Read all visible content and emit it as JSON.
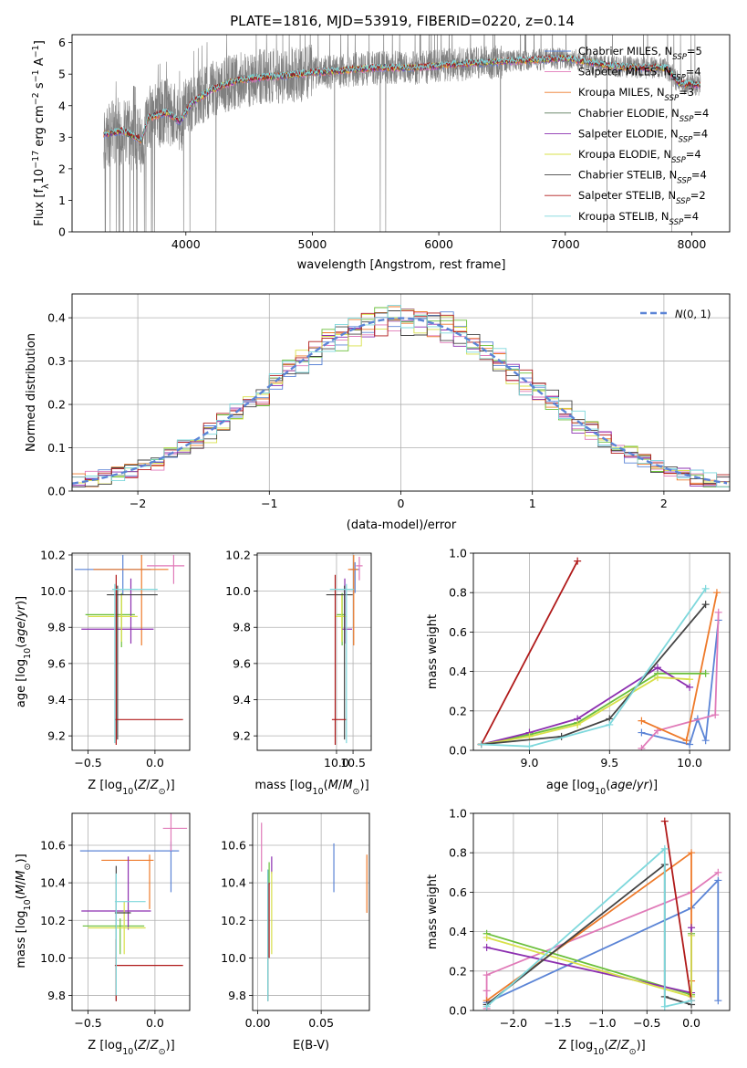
{
  "figure": {
    "title": "PLATE=1816, MJD=53919, FIBERID=0220, z=0.14"
  },
  "chart_data": [
    {
      "id": "spectrum",
      "type": "line",
      "xlabel": "wavelength [Angstrom, rest frame]",
      "ylabel": "Flux [f_λ 10^-17 erg cm^-2 s^-1 A^-1]",
      "xlim": [
        3100,
        8300
      ],
      "ylim": [
        0,
        6.25
      ],
      "xticks": [
        4000,
        5000,
        6000,
        7000,
        8000
      ],
      "yticks": [
        0,
        1,
        2,
        3,
        4,
        5,
        6
      ],
      "grid": false,
      "legend_position": "top-right",
      "data_range_x": [
        3350,
        8070
      ],
      "model_shape": {
        "x": [
          3350,
          3500,
          3650,
          3700,
          3850,
          3950,
          4050,
          4200,
          4400,
          4600,
          4800,
          5000,
          5200,
          5500,
          5800,
          6100,
          6500,
          7000,
          7300,
          7400,
          7600,
          7800,
          7900,
          8070
        ],
        "y": [
          3.1,
          3.2,
          2.9,
          3.6,
          3.8,
          3.5,
          4.1,
          4.5,
          4.8,
          4.9,
          4.95,
          5.05,
          5.1,
          5.2,
          5.2,
          5.3,
          5.4,
          5.5,
          5.3,
          5.25,
          5.2,
          5.2,
          4.7,
          4.65
        ]
      },
      "series": [
        {
          "name": "Chabrier MILES, N_SSP=5",
          "color": "#5b84d6"
        },
        {
          "name": "Salpeter MILES, N_SSP=4",
          "color": "#e07ab8"
        },
        {
          "name": "Kroupa MILES, N_SSP=3",
          "color": "#ee7a2a"
        },
        {
          "name": "Chabrier ELODIE, N_SSP=4",
          "color": "#5a7a5a"
        },
        {
          "name": "Salpeter ELODIE, N_SSP=4",
          "color": "#8c2fb0"
        },
        {
          "name": "Kroupa ELODIE, N_SSP=4",
          "color": "#d8e04a"
        },
        {
          "name": "Chabrier STELIB, N_SSP=4",
          "color": "#444444"
        },
        {
          "name": "Salpeter STELIB, N_SSP=2",
          "color": "#b01a1a"
        },
        {
          "name": "Kroupa STELIB, N_SSP=4",
          "color": "#7ed8dc"
        }
      ],
      "data_series_color": "#808080"
    },
    {
      "id": "residuals",
      "type": "histogram",
      "xlabel": "(data-model)/error",
      "ylabel": "Normed distribution",
      "xlim": [
        -2.5,
        2.5
      ],
      "ylim": [
        0,
        0.455
      ],
      "xticks": [
        -2,
        -1,
        0,
        1,
        2
      ],
      "yticks": [
        0.0,
        0.1,
        0.2,
        0.3,
        0.4
      ],
      "grid": true,
      "legend_position": "top-right",
      "legend": [
        {
          "label": "N(0,1)",
          "style": "dashed",
          "color": "#5b84d6"
        }
      ],
      "bin_width": 0.1
    },
    {
      "id": "age-vs-Z",
      "type": "errorbar",
      "xlabel": "Z [log10(Z/Z⊙)]",
      "ylabel": "age [log10(age/yr)]",
      "xlim": [
        -0.62,
        0.26
      ],
      "ylim": [
        9.12,
        10.21
      ],
      "xticks": [
        -0.5,
        0.0
      ],
      "yticks": [
        9.2,
        9.4,
        9.6,
        9.8,
        10.0,
        10.2
      ],
      "grid": true,
      "points": [
        {
          "x": -0.24,
          "y": 10.12,
          "xerr": [
            0.36,
            0.21
          ],
          "yerr": [
            0.14,
            0.08
          ],
          "color": "#5b84d6"
        },
        {
          "x": 0.14,
          "y": 10.14,
          "xerr": [
            0.2,
            0.08
          ],
          "yerr": [
            0.1,
            0.06
          ],
          "color": "#e07ab8"
        },
        {
          "x": -0.1,
          "y": 10.12,
          "xerr": [
            0.36,
            0.2
          ],
          "yerr": [
            0.42,
            0.08
          ],
          "color": "#ee7a2a"
        },
        {
          "x": -0.25,
          "y": 9.87,
          "xerr": [
            0.27,
            0.1
          ],
          "yerr": [
            0.18,
            0.12
          ],
          "color": "#6abf3a"
        },
        {
          "x": -0.18,
          "y": 9.79,
          "xerr": [
            0.37,
            0.17
          ],
          "yerr": [
            0.08,
            0.28
          ],
          "color": "#8c2fb0"
        },
        {
          "x": -0.25,
          "y": 9.86,
          "xerr": [
            0.25,
            0.12
          ],
          "yerr": [
            0.14,
            0.12
          ],
          "color": "#d8e04a"
        },
        {
          "x": -0.28,
          "y": 9.98,
          "xerr": [
            0.08,
            0.3
          ],
          "yerr": [
            0.8,
            0.05
          ],
          "color": "#444444"
        },
        {
          "x": -0.29,
          "y": 9.29,
          "xerr": [
            0.01,
            0.5
          ],
          "yerr": [
            0.14,
            0.8
          ],
          "color": "#b01a1a"
        },
        {
          "x": -0.3,
          "y": 10.01,
          "xerr": [
            0.02,
            0.32
          ],
          "yerr": [
            0.85,
            0.03
          ],
          "color": "#7ed8dc"
        }
      ]
    },
    {
      "id": "age-vs-mass",
      "type": "errorbar",
      "xlabel": "mass [log10(M/M⊙)]",
      "ylabel": "",
      "xlim": [
        7.6,
        11.05
      ],
      "ylim": [
        9.12,
        10.21
      ],
      "xticks": [
        10.0,
        10.5
      ],
      "yticks": [
        9.2,
        9.4,
        9.6,
        9.8,
        10.0,
        10.2
      ],
      "grid": true,
      "points": [
        {
          "x": 10.56,
          "y": 10.12,
          "xerr": [
            0.14,
            0.12
          ],
          "yerr": [
            0.13,
            0.04
          ],
          "color": "#5b84d6"
        },
        {
          "x": 10.69,
          "y": 10.14,
          "xerr": [
            0.1,
            0.1
          ],
          "yerr": [
            0.08,
            0.05
          ],
          "color": "#e07ab8"
        },
        {
          "x": 10.52,
          "y": 10.12,
          "xerr": [
            0.17,
            0.12
          ],
          "yerr": [
            0.42,
            0.08
          ],
          "color": "#ee7a2a"
        },
        {
          "x": 10.17,
          "y": 9.87,
          "xerr": [
            0.16,
            0.1
          ],
          "yerr": [
            0.17,
            0.12
          ],
          "color": "#6abf3a"
        },
        {
          "x": 10.25,
          "y": 9.79,
          "xerr": [
            0.09,
            0.22
          ],
          "yerr": [
            0.08,
            0.28
          ],
          "color": "#8c2fb0"
        },
        {
          "x": 10.16,
          "y": 9.86,
          "xerr": [
            0.2,
            0.15
          ],
          "yerr": [
            0.14,
            0.12
          ],
          "color": "#d8e04a"
        },
        {
          "x": 10.24,
          "y": 9.98,
          "xerr": [
            0.55,
            0.25
          ],
          "yerr": [
            0.8,
            0.05
          ],
          "color": "#444444"
        },
        {
          "x": 9.96,
          "y": 9.29,
          "xerr": [
            0.1,
            0.36
          ],
          "yerr": [
            0.14,
            0.8
          ],
          "color": "#b01a1a"
        },
        {
          "x": 10.3,
          "y": 10.01,
          "xerr": [
            0.5,
            0.22
          ],
          "yerr": [
            0.85,
            0.03
          ],
          "color": "#7ed8dc"
        }
      ]
    },
    {
      "id": "weight-vs-age",
      "type": "line",
      "xlabel": "age [log10(age/yr)]",
      "ylabel": "mass weight",
      "xlim": [
        8.65,
        10.25
      ],
      "ylim": [
        0,
        1.0
      ],
      "xticks": [
        9.0,
        9.5,
        10.0
      ],
      "yticks": [
        0.0,
        0.2,
        0.4,
        0.6,
        0.8,
        1.0
      ],
      "grid": true,
      "series": [
        {
          "color": "#5b84d6",
          "x": [
            9.7,
            10.0,
            10.05,
            10.1,
            10.18
          ],
          "y": [
            0.09,
            0.03,
            0.16,
            0.05,
            0.66
          ]
        },
        {
          "color": "#e07ab8",
          "x": [
            9.7,
            9.8,
            10.16,
            10.18
          ],
          "y": [
            0.01,
            0.1,
            0.18,
            0.7
          ]
        },
        {
          "color": "#ee7a2a",
          "x": [
            9.7,
            9.98,
            10.17
          ],
          "y": [
            0.15,
            0.05,
            0.8
          ]
        },
        {
          "color": "#6abf3a",
          "x": [
            8.7,
            9.0,
            9.3,
            9.8,
            10.1
          ],
          "y": [
            0.03,
            0.08,
            0.14,
            0.39,
            0.39
          ]
        },
        {
          "color": "#8c2fb0",
          "x": [
            8.7,
            9.0,
            9.3,
            9.8,
            10.0
          ],
          "y": [
            0.03,
            0.09,
            0.16,
            0.42,
            0.32
          ]
        },
        {
          "color": "#d8e04a",
          "x": [
            8.7,
            9.0,
            9.3,
            9.8,
            10.0
          ],
          "y": [
            0.03,
            0.07,
            0.13,
            0.37,
            0.36
          ]
        },
        {
          "color": "#444444",
          "x": [
            8.7,
            9.2,
            9.5,
            10.1
          ],
          "y": [
            0.03,
            0.07,
            0.16,
            0.74
          ]
        },
        {
          "color": "#b01a1a",
          "x": [
            8.7,
            9.3
          ],
          "y": [
            0.03,
            0.96
          ]
        },
        {
          "color": "#7ed8dc",
          "x": [
            8.7,
            9.0,
            9.5,
            10.1
          ],
          "y": [
            0.03,
            0.02,
            0.13,
            0.82
          ]
        }
      ]
    },
    {
      "id": "mass-vs-Z",
      "type": "errorbar",
      "xlabel": "Z [log10(Z/Z⊙)]",
      "ylabel": "mass [log10(M/M⊙)]",
      "xlim": [
        -0.62,
        0.26
      ],
      "ylim": [
        9.72,
        10.77
      ],
      "xticks": [
        -0.5,
        0.0
      ],
      "yticks": [
        9.8,
        10.0,
        10.2,
        10.4,
        10.6
      ],
      "grid": true,
      "points": [
        {
          "x": 0.12,
          "y": 10.57,
          "xerr": [
            0.68,
            0.06
          ],
          "yerr": [
            0.22,
            0.05
          ],
          "color": "#5b84d6"
        },
        {
          "x": 0.12,
          "y": 10.69,
          "xerr": [
            0.06,
            0.12
          ],
          "yerr": [
            0.12,
            0.08
          ],
          "color": "#e07ab8"
        },
        {
          "x": -0.04,
          "y": 10.52,
          "xerr": [
            0.36,
            0.03
          ],
          "yerr": [
            0.26,
            0.03
          ],
          "color": "#ee7a2a"
        },
        {
          "x": -0.26,
          "y": 10.17,
          "xerr": [
            0.28,
            0.18
          ],
          "yerr": [
            0.15,
            0.04
          ],
          "color": "#6abf3a"
        },
        {
          "x": -0.2,
          "y": 10.25,
          "xerr": [
            0.35,
            0.17
          ],
          "yerr": [
            0.1,
            0.29
          ],
          "color": "#8c2fb0"
        },
        {
          "x": -0.23,
          "y": 10.16,
          "xerr": [
            0.27,
            0.16
          ],
          "yerr": [
            0.14,
            0.14
          ],
          "color": "#d8e04a"
        },
        {
          "x": -0.29,
          "y": 10.24,
          "xerr": [
            0.01,
            0.11
          ],
          "yerr": [
            0.47,
            0.25
          ],
          "color": "#444444"
        },
        {
          "x": -0.29,
          "y": 9.96,
          "xerr": [
            0.01,
            0.5
          ],
          "yerr": [
            0.19,
            0.14
          ],
          "color": "#b01a1a"
        },
        {
          "x": -0.29,
          "y": 10.3,
          "xerr": [
            0.01,
            0.22
          ],
          "yerr": [
            0.5,
            0.15
          ],
          "color": "#7ed8dc"
        }
      ]
    },
    {
      "id": "mass-vs-ebv",
      "type": "errorbar",
      "xlabel": "E(B-V)",
      "ylabel": "",
      "xlim": [
        -0.004,
        0.088
      ],
      "ylim": [
        9.72,
        10.77
      ],
      "xticks": [
        0.0,
        0.05
      ],
      "yticks": [
        9.8,
        10.0,
        10.2,
        10.4,
        10.6
      ],
      "grid": true,
      "points": [
        {
          "x": 0.06,
          "y": 10.47,
          "xerr": [
            0,
            0
          ],
          "yerr": [
            0.12,
            0.14
          ],
          "color": "#5b84d6"
        },
        {
          "x": 0.003,
          "y": 10.6,
          "xerr": [
            0,
            0
          ],
          "yerr": [
            0.14,
            0.12
          ],
          "color": "#e07ab8"
        },
        {
          "x": 0.086,
          "y": 10.4,
          "xerr": [
            0,
            0
          ],
          "yerr": [
            0.16,
            0.15
          ],
          "color": "#ee7a2a"
        },
        {
          "x": 0.009,
          "y": 10.45,
          "xerr": [
            0,
            0
          ],
          "yerr": [
            0.06,
            0.06
          ],
          "color": "#6abf3a"
        },
        {
          "x": 0.011,
          "y": 10.49,
          "xerr": [
            0,
            0
          ],
          "yerr": [
            0.04,
            0.05
          ],
          "color": "#8c2fb0"
        },
        {
          "x": 0.011,
          "y": 10.22,
          "xerr": [
            0,
            0
          ],
          "yerr": [
            0.2,
            0.24
          ],
          "color": "#d8e04a"
        },
        {
          "x": 0.008,
          "y": 10.12,
          "xerr": [
            0,
            0
          ],
          "yerr": [
            0.35,
            0.35
          ],
          "color": "#444444"
        },
        {
          "x": 0.009,
          "y": 10.2,
          "xerr": [
            0,
            0
          ],
          "yerr": [
            0.2,
            0.2
          ],
          "color": "#b01a1a"
        },
        {
          "x": 0.008,
          "y": 10.12,
          "xerr": [
            0,
            0
          ],
          "yerr": [
            0.35,
            0.35
          ],
          "color": "#7ed8dc"
        }
      ]
    },
    {
      "id": "weight-vs-Z",
      "type": "line",
      "xlabel": "Z [log10(Z/Z⊙)]",
      "ylabel": "mass weight",
      "xlim": [
        -2.45,
        0.43
      ],
      "ylim": [
        0,
        1.0
      ],
      "xticks": [
        -2.0,
        -1.5,
        -1.0,
        -0.5,
        0.0
      ],
      "yticks": [
        0.0,
        0.2,
        0.4,
        0.6,
        0.8,
        1.0
      ],
      "grid": true,
      "series": [
        {
          "color": "#5b84d6",
          "x": [
            -2.3,
            0.0,
            0.3,
            0.3
          ],
          "y": [
            0.04,
            0.52,
            0.66,
            0.05
          ]
        },
        {
          "color": "#e07ab8",
          "x": [
            -2.3,
            -2.3,
            -2.3,
            0.0,
            0.3
          ],
          "y": [
            0.01,
            0.1,
            0.18,
            0.6,
            0.7
          ]
        },
        {
          "color": "#ee7a2a",
          "x": [
            -2.3,
            0.0,
            0.0
          ],
          "y": [
            0.05,
            0.8,
            0.15
          ]
        },
        {
          "color": "#6abf3a",
          "x": [
            -2.3,
            0.0,
            0.0
          ],
          "y": [
            0.39,
            0.08,
            0.39
          ]
        },
        {
          "color": "#8c2fb0",
          "x": [
            -2.3,
            0.0,
            0.0
          ],
          "y": [
            0.32,
            0.09,
            0.42
          ]
        },
        {
          "color": "#d8e04a",
          "x": [
            -2.3,
            0.0,
            0.0
          ],
          "y": [
            0.37,
            0.07,
            0.38
          ]
        },
        {
          "color": "#444444",
          "x": [
            -2.3,
            -0.3,
            -0.3,
            0.0
          ],
          "y": [
            0.03,
            0.74,
            0.07,
            0.03
          ]
        },
        {
          "color": "#b01a1a",
          "x": [
            -0.3,
            0.0
          ],
          "y": [
            0.96,
            0.05
          ]
        },
        {
          "color": "#7ed8dc",
          "x": [
            -2.3,
            -0.3,
            -0.3,
            0.0
          ],
          "y": [
            0.02,
            0.82,
            0.02,
            0.05
          ]
        }
      ]
    }
  ]
}
